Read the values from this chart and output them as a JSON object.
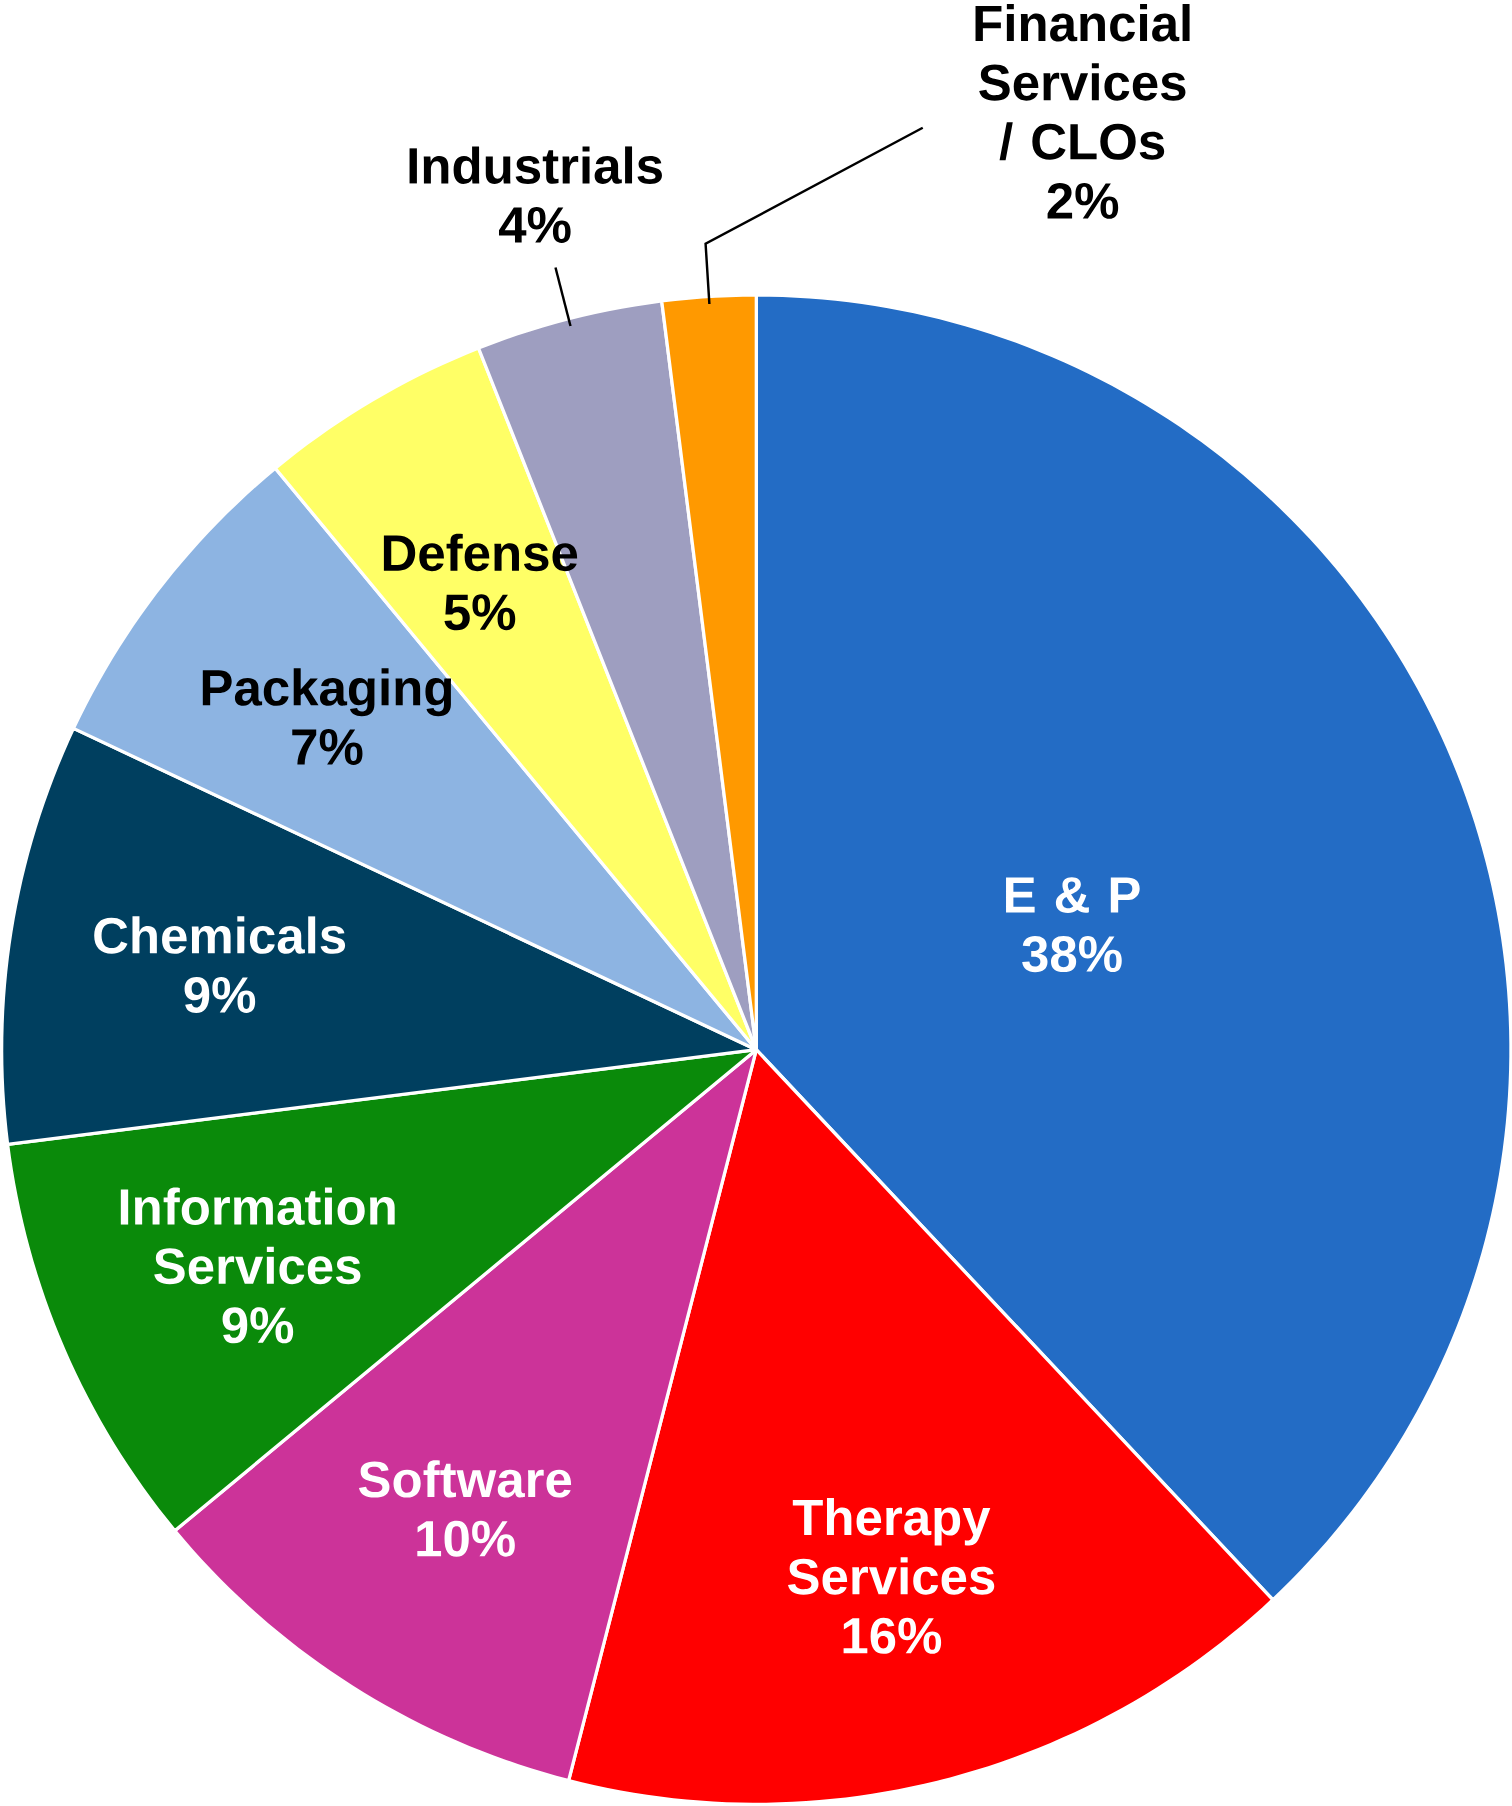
{
  "chart_data": {
    "type": "pie",
    "categories": [
      "E & P",
      "Therapy Services",
      "Software",
      "Information Services",
      "Chemicals",
      "Packaging",
      "Defense",
      "Industrials",
      "Financial Services / CLOs"
    ],
    "values": [
      38,
      16,
      10,
      9,
      9,
      7,
      5,
      4,
      2
    ],
    "value_labels": [
      "38%",
      "16%",
      "10%",
      "9%",
      "9%",
      "7%",
      "5%",
      "4%",
      "2%"
    ],
    "colors": [
      "#236cc5",
      "#ff0000",
      "#cc3399",
      "#0a8a0a",
      "#003f5f",
      "#8db4e2",
      "#ffff66",
      "#9e9ec0",
      "#ff9900"
    ]
  }
}
